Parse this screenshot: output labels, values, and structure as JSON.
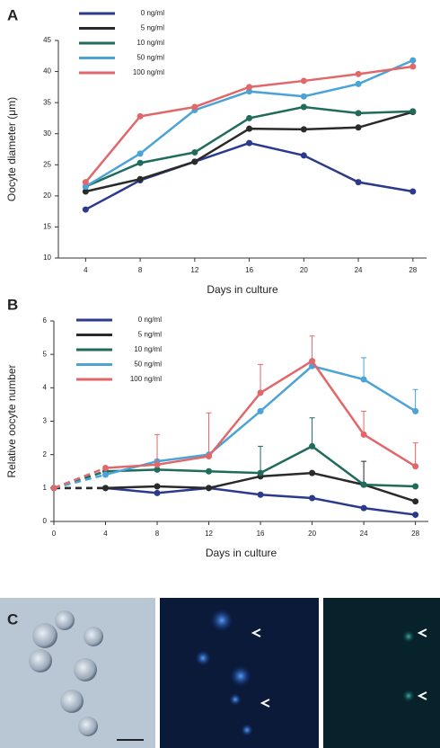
{
  "chart_data": [
    {
      "type": "line",
      "panel_label": "A",
      "x_label": "Days in culture",
      "y_label": "Oocyte diameter (μm)",
      "x": [
        4,
        8,
        12,
        16,
        20,
        24,
        28
      ],
      "xlim": [
        2,
        29
      ],
      "xticks": [
        4,
        8,
        12,
        16,
        20,
        24,
        28
      ],
      "ylim": [
        10,
        45
      ],
      "yticks": [
        10,
        15,
        20,
        25,
        30,
        35,
        40,
        45
      ],
      "series": [
        {
          "name": "0 ng/ml",
          "color": "#2b3a8c",
          "values": [
            17.8,
            22.5,
            25.5,
            28.5,
            26.5,
            22.2,
            20.7
          ]
        },
        {
          "name": "5 ng/ml",
          "color": "#2a2a2a",
          "values": [
            20.7,
            22.7,
            25.5,
            30.8,
            30.7,
            31.0,
            33.5
          ]
        },
        {
          "name": "10 ng/ml",
          "color": "#1f6b5c",
          "values": [
            21.5,
            25.3,
            27.0,
            32.5,
            34.3,
            33.3,
            33.6
          ]
        },
        {
          "name": "50 ng/ml",
          "color": "#4ba3d6",
          "values": [
            21.5,
            26.8,
            33.8,
            36.8,
            36.0,
            38.0,
            41.8
          ]
        },
        {
          "name": "100 ng/ml",
          "color": "#e2676a",
          "values": [
            22.2,
            32.8,
            34.3,
            37.5,
            38.5,
            39.6,
            40.8
          ]
        }
      ]
    },
    {
      "type": "line",
      "panel_label": "B",
      "x_label": "Days in culture",
      "y_label": "Relative oocyte number",
      "x": [
        0,
        4,
        8,
        12,
        16,
        20,
        24,
        28
      ],
      "xlim": [
        0,
        29
      ],
      "xticks": [
        0,
        4,
        8,
        12,
        16,
        20,
        24,
        28
      ],
      "ylim": [
        0,
        6
      ],
      "yticks": [
        0,
        1,
        2,
        3,
        4,
        5,
        6
      ],
      "dashed_before_x": 4,
      "series": [
        {
          "name": "0 ng/ml",
          "color": "#2b3a8c",
          "values": [
            1,
            1.0,
            0.85,
            1.0,
            0.8,
            0.7,
            0.4,
            0.2
          ]
        },
        {
          "name": "5 ng/ml",
          "color": "#2a2a2a",
          "values": [
            1,
            1.0,
            1.05,
            1.0,
            1.35,
            1.45,
            1.1,
            0.6
          ],
          "errors": [
            null,
            null,
            null,
            null,
            null,
            null,
            0.7,
            null
          ]
        },
        {
          "name": "10 ng/ml",
          "color": "#1f6b5c",
          "values": [
            1,
            1.5,
            1.55,
            1.5,
            1.45,
            2.25,
            1.1,
            1.05
          ],
          "errors": [
            null,
            null,
            null,
            null,
            0.8,
            0.85,
            null,
            null
          ]
        },
        {
          "name": "50 ng/ml",
          "color": "#4ba3d6",
          "values": [
            1,
            1.4,
            1.8,
            2.0,
            3.3,
            4.65,
            4.25,
            3.3
          ],
          "errors": [
            null,
            null,
            null,
            null,
            null,
            null,
            0.65,
            0.65
          ]
        },
        {
          "name": "100 ng/ml",
          "color": "#e2676a",
          "values": [
            1,
            1.6,
            1.7,
            1.95,
            3.85,
            4.8,
            2.6,
            1.65
          ],
          "errors": [
            null,
            null,
            0.9,
            1.3,
            0.85,
            0.75,
            0.7,
            0.7
          ]
        }
      ]
    }
  ],
  "panel_c": {
    "label": "C"
  }
}
